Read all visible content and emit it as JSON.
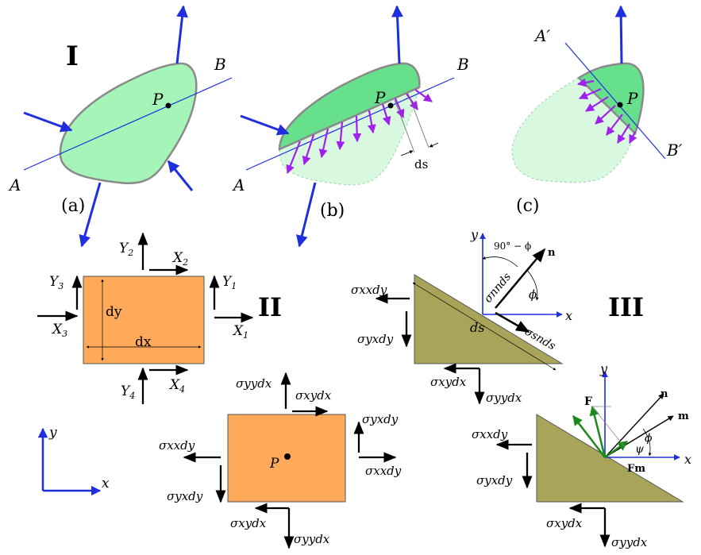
{
  "panel_I": {
    "numeral": "I",
    "labels": {
      "A": "A",
      "B": "B",
      "P": "P",
      "A_prime": "A′",
      "B_prime": "B′",
      "ds": "ds"
    },
    "captions": {
      "a": "(a)",
      "b": "(b)",
      "c": "(c)"
    }
  },
  "panel_II": {
    "numeral": "II",
    "forces": {
      "Y1": "Y",
      "Y1_sub": "1",
      "Y2": "Y",
      "Y2_sub": "2",
      "Y3": "Y",
      "Y3_sub": "3",
      "Y4": "Y",
      "Y4_sub": "4",
      "X1": "X",
      "X1_sub": "1",
      "X2": "X",
      "X2_sub": "2",
      "X3": "X",
      "X3_sub": "3",
      "X4": "X",
      "X4_sub": "4"
    },
    "dims": {
      "dx": "dx",
      "dy": "dy"
    },
    "axes": {
      "x": "x",
      "y": "y"
    },
    "stress_block": {
      "P": "P",
      "syy_top": "σyydx",
      "sxy_top": "σxydx",
      "syx_right": "σyxdy",
      "sxx_right": "σxxdy",
      "sxx_left": "σxxdy",
      "syx_left": "σyxdy",
      "sxy_bottom": "σxydx",
      "syy_bottom": "σyydx"
    }
  },
  "panel_III": {
    "numeral": "III",
    "top": {
      "x": "x",
      "y": "y",
      "n": "n",
      "angle": "90° − ϕ",
      "phi": "ϕ",
      "snn": "σnnds",
      "ssn": "σsnds",
      "ds": "ds",
      "sxx": "σxxdy",
      "syx": "σyxdy",
      "sxy": "σxydx",
      "syy": "σyydx"
    },
    "bottom": {
      "x": "x",
      "y": "y",
      "n": "n",
      "m": "m",
      "F": "F",
      "Fm": "Fm",
      "phi": "ϕ",
      "psi": "ψ",
      "sxx": "σxxdy",
      "syx": "σyxdy",
      "sxy": "σxydx",
      "syy": "σyydx"
    }
  },
  "colors": {
    "blob": "#a6f5b8",
    "blob_stroke": "#8a8a8a",
    "cut_dark": "#66e08a",
    "cut_light": "#d8f8e0",
    "blue": "#1f2fe0",
    "purple": "#a020f0",
    "orange": "#ffa95a",
    "olive": "#a8a55a",
    "green": "#1a8a1a"
  }
}
